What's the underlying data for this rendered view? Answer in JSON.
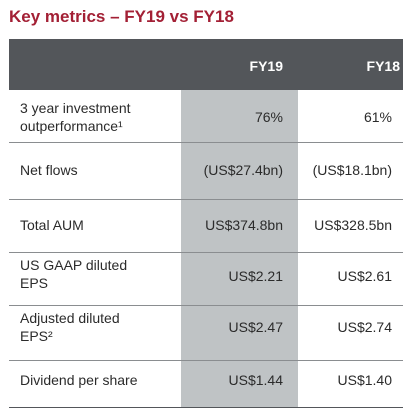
{
  "title": "Key metrics – FY19 vs FY18",
  "columns": [
    "FY19",
    "FY18"
  ],
  "rows": [
    {
      "label_line1": "3 year investment",
      "label_line2": "outperformance¹",
      "fy19": "76%",
      "fy18": "61%"
    },
    {
      "label_line1": "Net flows",
      "label_line2": "",
      "fy19": "(US$27.4bn)",
      "fy18": "(US$18.1bn)"
    },
    {
      "label_line1": "Total AUM",
      "label_line2": "",
      "fy19": "US$374.8bn",
      "fy18": "US$328.5bn"
    },
    {
      "label_line1": "US GAAP diluted",
      "label_line2": "EPS",
      "fy19": "US$2.21",
      "fy18": "US$2.61"
    },
    {
      "label_line1": "Adjusted diluted",
      "label_line2": "EPS²",
      "fy19": "US$2.47",
      "fy18": "US$2.74"
    },
    {
      "label_line1": "Dividend per share",
      "label_line2": "",
      "fy19": "US$1.44",
      "fy18": "US$1.40"
    }
  ],
  "colors": {
    "title": "#a32035",
    "header_bg": "#53565a",
    "highlight": "#bfc3c5"
  }
}
